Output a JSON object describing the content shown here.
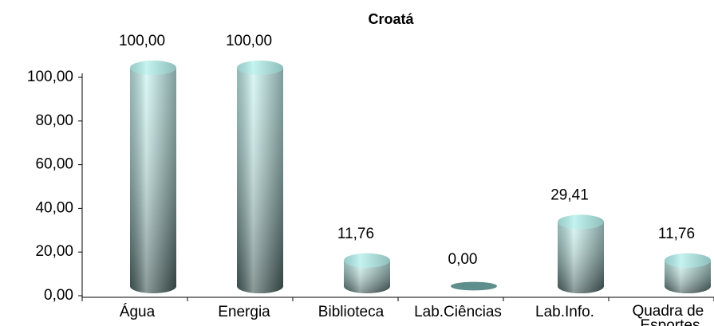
{
  "chart_data": {
    "type": "bar",
    "title": "Croatá",
    "categories": [
      "Água",
      "Energia",
      "Biblioteca",
      "Lab.Ciências",
      "Lab.Info.",
      "Quadra de Esportes"
    ],
    "values": [
      100,
      100,
      11.76,
      0,
      29.41,
      11.76
    ],
    "value_labels": [
      "100,00",
      "100,00",
      "11,76",
      "0,00",
      "29,41",
      "11,76"
    ],
    "color": "#b4f0ec",
    "ylim": [
      0,
      100
    ],
    "yticks": [
      {
        "value": 0,
        "label": "0,00"
      },
      {
        "value": 20,
        "label": "20,00"
      },
      {
        "value": 40,
        "label": "40,00"
      },
      {
        "value": 60,
        "label": "60,00"
      },
      {
        "value": 80,
        "label": "80,00"
      },
      {
        "value": 100,
        "label": "100,00"
      }
    ],
    "grid": false
  }
}
